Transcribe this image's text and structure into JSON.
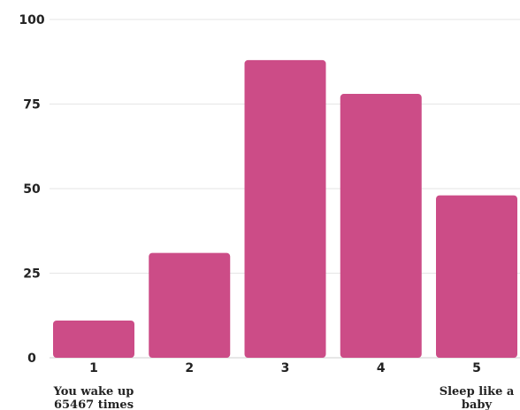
{
  "chart_data": {
    "type": "bar",
    "categories": [
      "1",
      "2",
      "3",
      "4",
      "5"
    ],
    "values": [
      11,
      31,
      88,
      78,
      48
    ],
    "title": "",
    "xlabel": "",
    "ylabel": "",
    "ylim": [
      0,
      100
    ],
    "yticks": [
      "0",
      "25",
      "50",
      "75",
      "100"
    ],
    "ytick_values": [
      0,
      25,
      50,
      75,
      100
    ],
    "grid": true,
    "bar_color": "#cc4c87",
    "end_labels": {
      "low": [
        "You wake up",
        "65467 times"
      ],
      "high": [
        "Sleep like a",
        "baby"
      ]
    }
  }
}
